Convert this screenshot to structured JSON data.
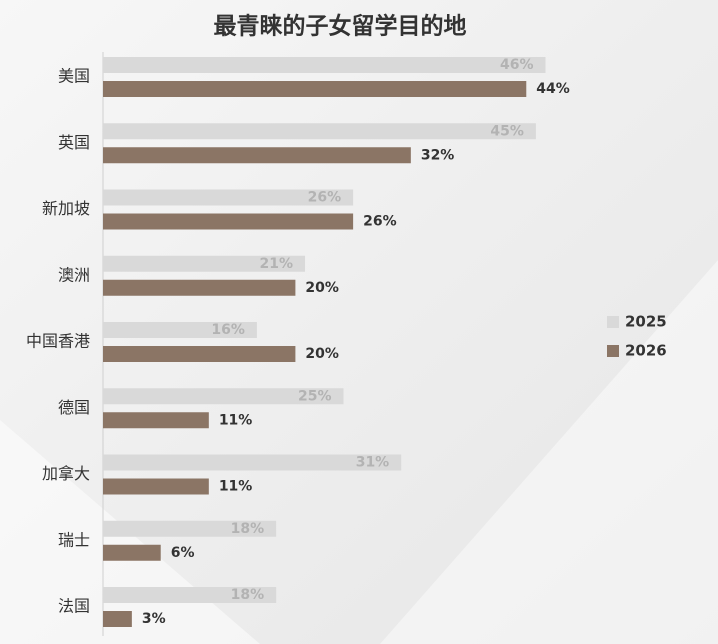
{
  "chart_data": {
    "type": "hbar",
    "title": "最青睐的子女留学目的地",
    "categories": [
      "美国",
      "英国",
      "新加坡",
      "澳洲",
      "中国香港",
      "德国",
      "加拿大",
      "瑞士",
      "法国"
    ],
    "series": [
      {
        "name": "2025",
        "color": "#d9d9d9",
        "label_color": "#b3b3b3",
        "values": [
          46,
          45,
          26,
          21,
          16,
          25,
          31,
          18,
          18
        ],
        "value_labels": [
          "46%",
          "45%",
          "26%",
          "21%",
          "16%",
          "25%",
          "31%",
          "18%",
          "18%"
        ]
      },
      {
        "name": "2026",
        "color": "#8b7565",
        "label_color": "#333333",
        "values": [
          44,
          32,
          26,
          20,
          20,
          11,
          11,
          6,
          3
        ],
        "value_labels": [
          "44%",
          "32%",
          "26%",
          "20%",
          "20%",
          "11%",
          "11%",
          "6%",
          "3%"
        ]
      }
    ],
    "xlim": [
      0,
      50
    ],
    "legend": "right"
  }
}
